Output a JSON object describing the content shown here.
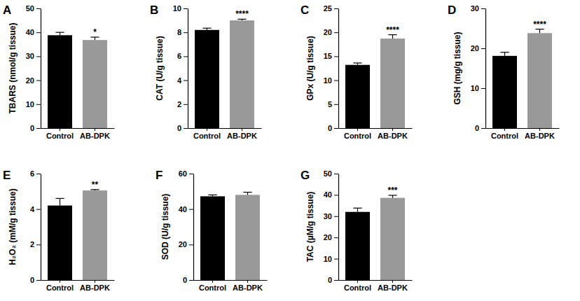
{
  "chart_data": [
    {
      "type": "bar",
      "title": "A",
      "ylabel": "TBARS (nmol/g tissue)",
      "categories": [
        "Control",
        "AB-DPK"
      ],
      "values": [
        38.8,
        36.8
      ],
      "errors": [
        1.2,
        1.2
      ],
      "colors": [
        "#000000",
        "#999999"
      ],
      "ylim": [
        0,
        50
      ],
      "yticks": [
        0,
        10,
        20,
        30,
        40,
        50
      ],
      "annotations": [
        {
          "category": "AB-DPK",
          "text": "*"
        }
      ]
    },
    {
      "type": "bar",
      "title": "B",
      "ylabel": "CAT (U/g tissue)",
      "categories": [
        "Control",
        "AB-DPK"
      ],
      "values": [
        8.2,
        9.0
      ],
      "errors": [
        0.15,
        0.1
      ],
      "colors": [
        "#000000",
        "#999999"
      ],
      "ylim": [
        0,
        10
      ],
      "yticks": [
        0,
        2,
        4,
        6,
        8,
        10
      ],
      "annotations": [
        {
          "category": "AB-DPK",
          "text": "****"
        }
      ]
    },
    {
      "type": "bar",
      "title": "C",
      "ylabel": "GPx (U/g tissue)",
      "categories": [
        "Control",
        "AB-DPK"
      ],
      "values": [
        13.2,
        18.7
      ],
      "errors": [
        0.4,
        0.8
      ],
      "colors": [
        "#000000",
        "#999999"
      ],
      "ylim": [
        0,
        25
      ],
      "yticks": [
        0,
        5,
        10,
        15,
        20,
        25
      ],
      "annotations": [
        {
          "category": "AB-DPK",
          "text": "****"
        }
      ]
    },
    {
      "type": "bar",
      "title": "D",
      "ylabel": "GSH (mg/g tissue)",
      "categories": [
        "Control",
        "AB-DPK"
      ],
      "values": [
        18.1,
        23.8
      ],
      "errors": [
        0.9,
        1.0
      ],
      "colors": [
        "#000000",
        "#999999"
      ],
      "ylim": [
        0,
        30
      ],
      "yticks": [
        0,
        10,
        20,
        30
      ],
      "annotations": [
        {
          "category": "AB-DPK",
          "text": "****"
        }
      ]
    },
    {
      "type": "bar",
      "title": "E",
      "ylabel": "H₂O₂ (mM/g tissue)",
      "categories": [
        "Control",
        "AB-DPK"
      ],
      "values": [
        4.2,
        5.05
      ],
      "errors": [
        0.4,
        0.05
      ],
      "colors": [
        "#000000",
        "#999999"
      ],
      "ylim": [
        0,
        6
      ],
      "yticks": [
        0,
        2,
        4,
        6
      ],
      "annotations": [
        {
          "category": "AB-DPK",
          "text": "**"
        }
      ]
    },
    {
      "type": "bar",
      "title": "F",
      "ylabel": "SOD (U/g tissue)",
      "categories": [
        "Control",
        "AB-DPK"
      ],
      "values": [
        47.2,
        48.0
      ],
      "errors": [
        0.8,
        1.5
      ],
      "colors": [
        "#000000",
        "#999999"
      ],
      "ylim": [
        0,
        60
      ],
      "yticks": [
        0,
        20,
        40,
        60
      ]
    },
    {
      "type": "bar",
      "title": "G",
      "ylabel": "TAC (µM/g tissue)",
      "categories": [
        "Control",
        "AB-DPK"
      ],
      "values": [
        32.0,
        38.6
      ],
      "errors": [
        1.8,
        1.2
      ],
      "colors": [
        "#000000",
        "#999999"
      ],
      "ylim": [
        0,
        50
      ],
      "yticks": [
        0,
        10,
        20,
        30,
        40,
        50
      ],
      "annotations": [
        {
          "category": "AB-DPK",
          "text": "***"
        }
      ]
    }
  ]
}
